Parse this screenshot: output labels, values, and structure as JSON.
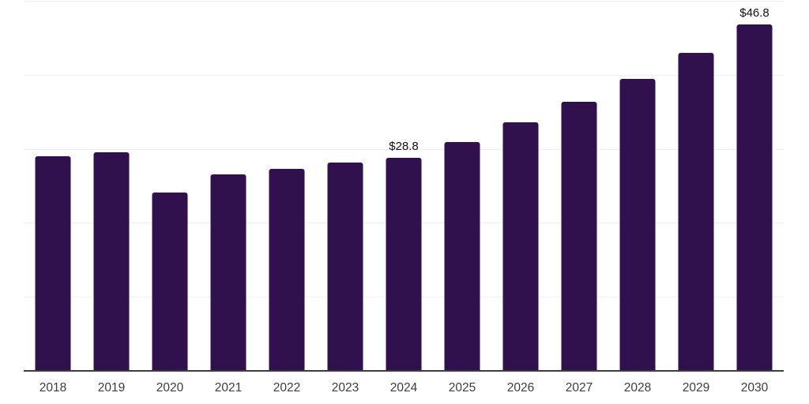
{
  "chart_data": {
    "type": "bar",
    "title": "",
    "xlabel": "",
    "ylabel": "",
    "categories": [
      "2018",
      "2019",
      "2020",
      "2021",
      "2022",
      "2023",
      "2024",
      "2025",
      "2026",
      "2027",
      "2028",
      "2029",
      "2030"
    ],
    "values": [
      29.0,
      29.5,
      24.1,
      26.5,
      27.3,
      28.1,
      28.8,
      30.9,
      33.6,
      36.4,
      39.4,
      43.0,
      46.8
    ],
    "data_labels": {
      "2024": "$28.8",
      "2030": "$46.8"
    },
    "ylim": [
      0,
      50
    ],
    "grid_interval": 10,
    "grid": "horizontal-only",
    "legend_position": "none",
    "y_tick_labels_visible": false,
    "colors": {
      "bar": "#31114d",
      "grid": "#f0f0f0",
      "axis": "#3d3d3d",
      "tick_label": "#3d3d3d",
      "data_label": "#111111"
    }
  }
}
